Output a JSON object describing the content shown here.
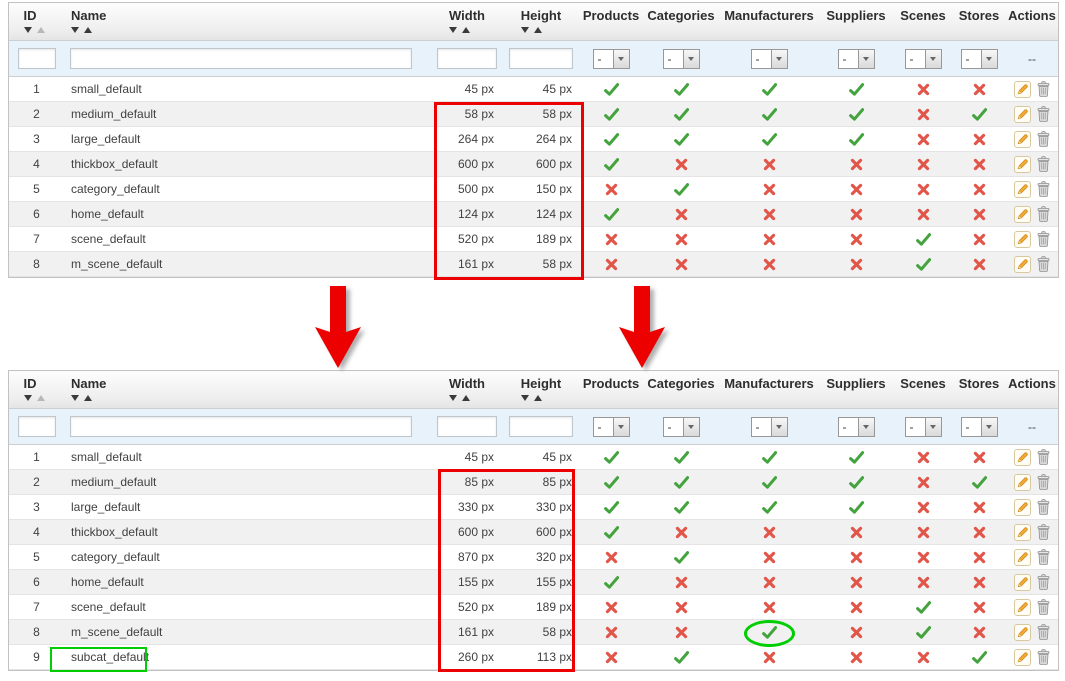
{
  "table": {
    "columns": [
      {
        "label": "ID",
        "sortable": true,
        "inactive_up_arrow": true
      },
      {
        "label": "Name",
        "sortable": true
      },
      {
        "label": "Width",
        "sortable": true
      },
      {
        "label": "Height",
        "sortable": true
      },
      {
        "label": "Products"
      },
      {
        "label": "Categories"
      },
      {
        "label": "Manufacturers"
      },
      {
        "label": "Suppliers"
      },
      {
        "label": "Scenes"
      },
      {
        "label": "Stores"
      },
      {
        "label": "Actions"
      }
    ],
    "filters": {
      "id_value": "",
      "name_value": "",
      "width_value": "",
      "height_value": "",
      "select_value": "-",
      "actions_placeholder": "--"
    },
    "flag_columns": [
      "Products",
      "Categories",
      "Manufacturers",
      "Suppliers",
      "Scenes",
      "Stores"
    ],
    "action_icons": [
      "edit",
      "delete"
    ]
  },
  "tables": [
    {
      "rows": [
        {
          "id": "1",
          "name": "small_default",
          "width": "45 px",
          "height": "45 px",
          "flags": [
            true,
            true,
            true,
            true,
            false,
            false
          ]
        },
        {
          "id": "2",
          "name": "medium_default",
          "width": "58 px",
          "height": "58 px",
          "flags": [
            true,
            true,
            true,
            true,
            false,
            true
          ]
        },
        {
          "id": "3",
          "name": "large_default",
          "width": "264 px",
          "height": "264 px",
          "flags": [
            true,
            true,
            true,
            true,
            false,
            false
          ]
        },
        {
          "id": "4",
          "name": "thickbox_default",
          "width": "600 px",
          "height": "600 px",
          "flags": [
            true,
            false,
            false,
            false,
            false,
            false
          ]
        },
        {
          "id": "5",
          "name": "category_default",
          "width": "500 px",
          "height": "150 px",
          "flags": [
            false,
            true,
            false,
            false,
            false,
            false
          ]
        },
        {
          "id": "6",
          "name": "home_default",
          "width": "124 px",
          "height": "124 px",
          "flags": [
            true,
            false,
            false,
            false,
            false,
            false
          ]
        },
        {
          "id": "7",
          "name": "scene_default",
          "width": "520 px",
          "height": "189 px",
          "flags": [
            false,
            false,
            false,
            false,
            true,
            false
          ]
        },
        {
          "id": "8",
          "name": "m_scene_default",
          "width": "161 px",
          "height": "58 px",
          "flags": [
            false,
            false,
            false,
            false,
            true,
            false
          ]
        }
      ]
    },
    {
      "rows": [
        {
          "id": "1",
          "name": "small_default",
          "width": "45 px",
          "height": "45 px",
          "flags": [
            true,
            true,
            true,
            true,
            false,
            false
          ]
        },
        {
          "id": "2",
          "name": "medium_default",
          "width": "85 px",
          "height": "85 px",
          "flags": [
            true,
            true,
            true,
            true,
            false,
            true
          ]
        },
        {
          "id": "3",
          "name": "large_default",
          "width": "330 px",
          "height": "330 px",
          "flags": [
            true,
            true,
            true,
            true,
            false,
            false
          ]
        },
        {
          "id": "4",
          "name": "thickbox_default",
          "width": "600 px",
          "height": "600 px",
          "flags": [
            true,
            false,
            false,
            false,
            false,
            false
          ]
        },
        {
          "id": "5",
          "name": "category_default",
          "width": "870 px",
          "height": "320 px",
          "flags": [
            false,
            true,
            false,
            false,
            false,
            false
          ]
        },
        {
          "id": "6",
          "name": "home_default",
          "width": "155 px",
          "height": "155 px",
          "flags": [
            true,
            false,
            false,
            false,
            false,
            false
          ]
        },
        {
          "id": "7",
          "name": "scene_default",
          "width": "520 px",
          "height": "189 px",
          "flags": [
            false,
            false,
            false,
            false,
            true,
            false
          ]
        },
        {
          "id": "8",
          "name": "m_scene_default",
          "width": "161 px",
          "height": "58 px",
          "flags": [
            false,
            false,
            true,
            false,
            true,
            false
          ],
          "circled_flag_index": 2
        },
        {
          "id": "9",
          "name": "subcat_default",
          "width": "260 px",
          "height": "113 px",
          "flags": [
            false,
            true,
            false,
            false,
            false,
            true
          ],
          "name_highlighted": true
        }
      ]
    }
  ],
  "colors": {
    "check_green": "#43a33d",
    "cross_red": "#e2564a",
    "annotation_red": "#ec0000",
    "annotation_green": "#00ce00",
    "filter_row_blue": "#e7f2fa",
    "pencil_orange": "#f5a833"
  }
}
